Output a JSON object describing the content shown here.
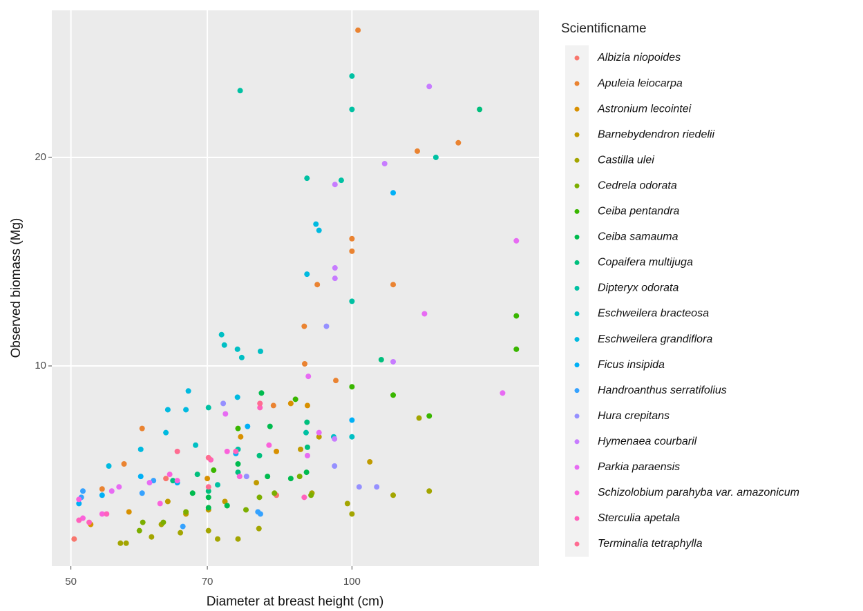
{
  "chart_data": {
    "type": "scatter",
    "x_label": "Diameter at breast height (cm)",
    "y_label": "Observed biomass (Mg)",
    "legend_title": "Scientificname",
    "x_scale": "log",
    "xlim": [
      47.7,
      158.6
    ],
    "xticks": [
      50,
      70,
      100
    ],
    "ylim": [
      0.4,
      27.05
    ],
    "yticks": [
      10,
      20
    ],
    "grid": true,
    "legend_position": "right",
    "series": [
      {
        "name": "Albizia niopoides",
        "color": "#F8766D",
        "x": [
          50.4,
          63.2,
          83.0
        ],
        "values": [
          1.7,
          4.6,
          3.8
        ]
      },
      {
        "name": "Apuleia leiocarpa",
        "color": "#EA8331",
        "x": [
          101.5,
          100,
          100,
          91.8,
          110.7,
          117.5,
          130,
          88.9,
          89,
          82.4,
          59.6,
          57,
          54,
          96.1
        ],
        "values": [
          26.1,
          15.5,
          16.1,
          13.9,
          13.9,
          20.3,
          20.7,
          11.9,
          10.1,
          8.1,
          7,
          5.3,
          4.1,
          9.3
        ]
      },
      {
        "name": "Astronium lecointei",
        "color": "#D89000",
        "x": [
          89.6,
          86,
          76,
          83,
          70,
          57.7,
          52.5
        ],
        "values": [
          8.1,
          8.2,
          6.6,
          5.9,
          4.6,
          3,
          2.4
        ]
      },
      {
        "name": "Barnebydendron riedelii",
        "color": "#C09B00",
        "x": [
          104.5,
          92.2,
          88.1,
          79,
          73.1,
          70.2,
          66.4,
          63.5
        ],
        "values": [
          5.4,
          6.6,
          6,
          4.4,
          3.5,
          3.1,
          2.9,
          3.5
        ]
      },
      {
        "name": "Castilla ulei",
        "color": "#A3A500",
        "x": [
          110.7,
          121,
          118,
          100,
          98.9,
          90.6,
          79.5,
          75.5,
          70.2,
          61,
          56.5,
          57.3,
          62.5,
          65.5,
          71.8
        ],
        "values": [
          3.8,
          4,
          7.5,
          2.9,
          3.4,
          3.9,
          2.2,
          1.7,
          2.1,
          1.8,
          1.5,
          1.5,
          2.4,
          2.0,
          1.7
        ]
      },
      {
        "name": "Cedrela odorata",
        "color": "#7CAE00",
        "x": [
          82.6,
          79.6,
          77,
          73.5,
          66.4,
          62.8,
          59.7,
          59.2,
          87.9,
          90.4
        ],
        "values": [
          3.9,
          3.7,
          3.1,
          3.3,
          3,
          2.5,
          2.5,
          2.1,
          4.7,
          3.8
        ]
      },
      {
        "name": "Ceiba pentandra",
        "color": "#39B600",
        "x": [
          150,
          150,
          121,
          110.7,
          87,
          100,
          75.5,
          71.1
        ],
        "values": [
          12.4,
          10.8,
          7.6,
          8.6,
          8.4,
          9,
          7,
          5
        ]
      },
      {
        "name": "Ceiba samauma",
        "color": "#00BB4E",
        "x": [
          81.7,
          80,
          86,
          89.4,
          81.2,
          75.5,
          70.2,
          73.5,
          67.5,
          70.2
        ],
        "values": [
          7.1,
          8.7,
          4.6,
          4.9,
          4.7,
          5.3,
          3.7,
          3.3,
          3.9,
          3.2
        ]
      },
      {
        "name": "Copaifera multijuga",
        "color": "#00BF7D",
        "x": [
          107.5,
          137,
          89.5,
          89.6,
          79.6,
          75.5,
          70.2,
          68.3,
          64.3
        ],
        "values": [
          10.3,
          22.3,
          7.3,
          6.1,
          5.7,
          4.9,
          4,
          4.8,
          4.5
        ]
      },
      {
        "name": "Dipteryx odorata",
        "color": "#00C1A3",
        "x": [
          75.9,
          100,
          100,
          123,
          97.4,
          89.5,
          100,
          70.2,
          89.3,
          75.5,
          71.8
        ],
        "values": [
          23.2,
          23.9,
          22.3,
          20,
          18.9,
          19,
          13.1,
          8,
          6.8,
          6,
          4.3
        ]
      },
      {
        "name": "Eschweilera bracteosa",
        "color": "#00BFC4",
        "x": [
          72.5,
          73,
          75.4,
          76.2,
          79.8,
          100,
          95.6,
          68
        ],
        "values": [
          11.5,
          11,
          10.8,
          10.4,
          10.7,
          6.6,
          6.6,
          6.2
        ]
      },
      {
        "name": "Eschweilera grandiflora",
        "color": "#00BAE0",
        "x": [
          91.5,
          92.2,
          89.5,
          75.4,
          63.2,
          66.8,
          66.4,
          63.5,
          59.4,
          54.9
        ],
        "values": [
          16.8,
          16.5,
          14.4,
          8.5,
          6.8,
          8.8,
          7.9,
          7.9,
          6,
          5.2
        ]
      },
      {
        "name": "Ficus insipida",
        "color": "#00B0F6",
        "x": [
          110.7,
          100,
          77.3,
          75.1,
          65,
          59.4,
          54,
          51
        ],
        "values": [
          18.3,
          7.4,
          7.1,
          5.8,
          4.4,
          4.7,
          3.8,
          3.4
        ]
      },
      {
        "name": "Handroanthus serratifolius",
        "color": "#35A2FF",
        "x": [
          79.8,
          79.3,
          65.9,
          51.5,
          51.3,
          61.3,
          59.6
        ],
        "values": [
          2.9,
          3.0,
          2.3,
          4,
          3.7,
          4.5,
          3.9
        ]
      },
      {
        "name": "Hura crepitans",
        "color": "#9590FF",
        "x": [
          106.3,
          101.8,
          95.8,
          93.9,
          72.8,
          77.1
        ],
        "values": [
          4.2,
          4.2,
          5.2,
          11.9,
          8.2,
          4.7
        ]
      },
      {
        "name": "Hymenaea courbaril",
        "color": "#C77CFF",
        "x": [
          121,
          108.4,
          95.9,
          95.9,
          95.9,
          110.7,
          95.8
        ],
        "values": [
          23.4,
          19.7,
          18.7,
          14.7,
          14.2,
          10.2,
          6.5
        ]
      },
      {
        "name": "Parkia paraensis",
        "color": "#E76BF3",
        "x": [
          150,
          119.6,
          145,
          89.8,
          92.2,
          89.6,
          73.2,
          60.7,
          56.3,
          55.3
        ],
        "values": [
          16,
          12.5,
          8.7,
          9.5,
          6.8,
          5.7,
          7.7,
          4.4,
          4.2,
          4.0
        ]
      },
      {
        "name": "Schizolobium parahyba var. amazonicum",
        "color": "#FA62DB",
        "x": [
          81.5,
          73.5,
          75.8,
          65,
          62.3,
          63.8,
          54,
          51.5,
          51
        ],
        "values": [
          6.2,
          5.9,
          4.7,
          4.5,
          3.4,
          4.8,
          2.9,
          2.7,
          3.6
        ]
      },
      {
        "name": "Sterculia apetala",
        "color": "#FF62BC",
        "x": [
          79.7,
          75.1,
          70.6,
          54.6,
          52.3,
          51,
          88.9
        ],
        "values": [
          8,
          5.9,
          5.5,
          2.9,
          2.5,
          2.6,
          3.7
        ]
      },
      {
        "name": "Terminalia tetraphylla",
        "color": "#FF6C91",
        "x": [
          79.7,
          70.2,
          65,
          70.2
        ],
        "values": [
          8.2,
          5.6,
          5.9,
          4.2
        ]
      }
    ]
  }
}
